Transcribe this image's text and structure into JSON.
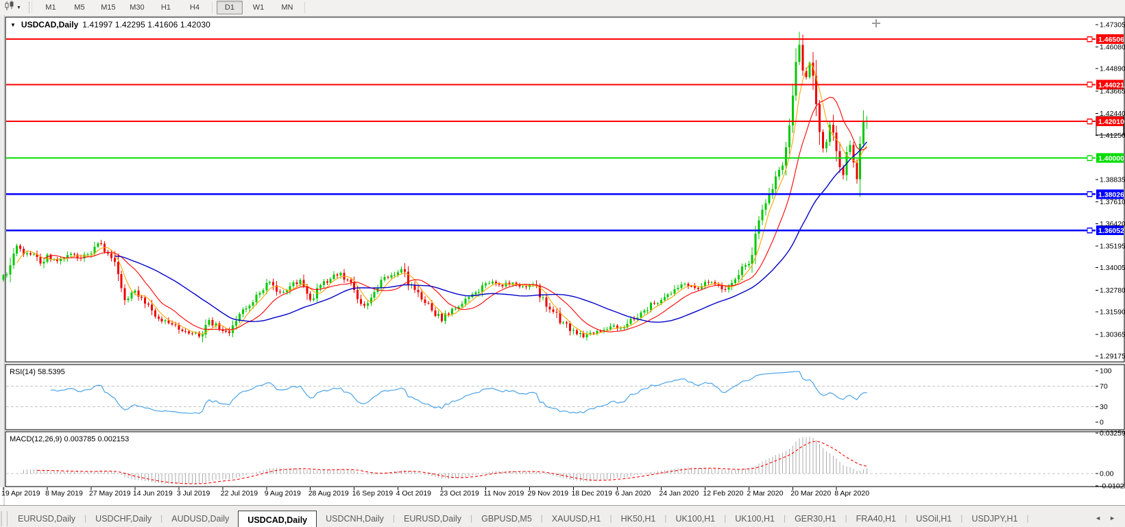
{
  "toolbar": {
    "chart_type_icon": "candlestick-chart-icon",
    "timeframes": [
      "M1",
      "M5",
      "M15",
      "M30",
      "H1",
      "H4",
      "D1",
      "W1",
      "MN"
    ],
    "active_timeframe": "D1"
  },
  "chart": {
    "title": {
      "caret": "▼",
      "symbol": "USDCAD,Daily",
      "ohlc": "1.41997 1.42295 1.41606 1.42030"
    }
  },
  "chart_data": {
    "type": "candlestick",
    "symbol": "USDCAD",
    "timeframe": "Daily",
    "last_bar": {
      "open": 1.41997,
      "high": 1.42295,
      "low": 1.41606,
      "close": 1.4203
    },
    "bar_count": 257,
    "y_axis": {
      "max": 1.4771,
      "min": 1.2886,
      "ticks": [
        "1.47305",
        "1.46080",
        "1.44890",
        "1.43665",
        "1.42440",
        "1.41250",
        "1.38835",
        "1.37610",
        "1.36420",
        "1.35195",
        "1.34005",
        "1.32780",
        "1.31590",
        "1.30365",
        "1.29175"
      ]
    },
    "x_axis": {
      "bars_per_label": 13,
      "labels": [
        "19 Apr 2019",
        "8 May 2019",
        "27 May 2019",
        "14 Jun 2019",
        "3 Jul 2019",
        "22 Jul 2019",
        "9 Aug 2019",
        "28 Aug 2019",
        "16 Sep 2019",
        "4 Oct 2019",
        "23 Oct 2019",
        "11 Nov 2019",
        "29 Nov 2019",
        "18 Dec 2019",
        "6 Jan 2020",
        "24 Jan 2020",
        "12 Feb 2020",
        "2 Mar 2020",
        "20 Mar 2020",
        "8 Apr 2020"
      ]
    },
    "close_waypoints": [
      [
        0,
        1.336
      ],
      [
        2,
        1.3405
      ],
      [
        4,
        1.352
      ],
      [
        6,
        1.348
      ],
      [
        9,
        1.347
      ],
      [
        11,
        1.342
      ],
      [
        13,
        1.3475
      ],
      [
        16,
        1.3435
      ],
      [
        19,
        1.3475
      ],
      [
        22,
        1.3455
      ],
      [
        25,
        1.347
      ],
      [
        27,
        1.352
      ],
      [
        29,
        1.354
      ],
      [
        31,
        1.348
      ],
      [
        33,
        1.344
      ],
      [
        36,
        1.3225
      ],
      [
        39,
        1.327
      ],
      [
        42,
        1.321
      ],
      [
        45,
        1.313
      ],
      [
        48,
        1.311
      ],
      [
        51,
        1.308
      ],
      [
        55,
        1.3045
      ],
      [
        58,
        1.303
      ],
      [
        61,
        1.311
      ],
      [
        64,
        1.307
      ],
      [
        67,
        1.3045
      ],
      [
        70,
        1.314
      ],
      [
        73,
        1.32
      ],
      [
        76,
        1.326
      ],
      [
        79,
        1.332
      ],
      [
        82,
        1.3265
      ],
      [
        85,
        1.3305
      ],
      [
        88,
        1.3335
      ],
      [
        91,
        1.323
      ],
      [
        94,
        1.331
      ],
      [
        97,
        1.334
      ],
      [
        100,
        1.3375
      ],
      [
        103,
        1.331
      ],
      [
        106,
        1.3195
      ],
      [
        109,
        1.323
      ],
      [
        112,
        1.333
      ],
      [
        115,
        1.3365
      ],
      [
        118,
        1.339
      ],
      [
        121,
        1.3305
      ],
      [
        124,
        1.323
      ],
      [
        127,
        1.317
      ],
      [
        130,
        1.3115
      ],
      [
        133,
        1.317
      ],
      [
        136,
        1.321
      ],
      [
        139,
        1.326
      ],
      [
        142,
        1.33
      ],
      [
        145,
        1.332
      ],
      [
        148,
        1.33
      ],
      [
        151,
        1.332
      ],
      [
        154,
        1.33
      ],
      [
        157,
        1.3305
      ],
      [
        160,
        1.323
      ],
      [
        163,
        1.316
      ],
      [
        166,
        1.31
      ],
      [
        169,
        1.3055
      ],
      [
        172,
        1.302
      ],
      [
        175,
        1.3045
      ],
      [
        178,
        1.3065
      ],
      [
        181,
        1.308
      ],
      [
        184,
        1.307
      ],
      [
        187,
        1.3125
      ],
      [
        190,
        1.3165
      ],
      [
        193,
        1.3205
      ],
      [
        196,
        1.3245
      ],
      [
        199,
        1.329
      ],
      [
        202,
        1.331
      ],
      [
        205,
        1.329
      ],
      [
        208,
        1.332
      ],
      [
        211,
        1.3305
      ],
      [
        214,
        1.3285
      ],
      [
        217,
        1.334
      ],
      [
        220,
        1.341
      ],
      [
        222,
        1.348
      ],
      [
        224,
        1.365
      ],
      [
        226,
        1.375
      ],
      [
        228,
        1.382
      ],
      [
        230,
        1.392
      ],
      [
        232,
        1.408
      ],
      [
        233,
        1.419
      ],
      [
        234,
        1.433
      ],
      [
        235,
        1.452
      ],
      [
        236,
        1.462
      ],
      [
        237,
        1.45
      ],
      [
        238,
        1.444
      ],
      [
        239,
        1.452
      ],
      [
        240,
        1.443
      ],
      [
        241,
        1.427
      ],
      [
        242,
        1.415
      ],
      [
        243,
        1.406
      ],
      [
        244,
        1.409
      ],
      [
        245,
        1.419
      ],
      [
        246,
        1.413
      ],
      [
        247,
        1.406
      ],
      [
        248,
        1.396
      ],
      [
        249,
        1.39
      ],
      [
        250,
        1.401
      ],
      [
        251,
        1.408
      ],
      [
        252,
        1.396
      ],
      [
        253,
        1.388
      ],
      [
        254,
        1.409
      ],
      [
        255,
        1.42
      ],
      [
        256,
        1.4203
      ]
    ],
    "wick_overrides": [
      [
        235,
        1.46
      ],
      [
        236,
        1.469
      ],
      [
        255,
        1.4262
      ]
    ],
    "horizontal_lines": [
      {
        "price": 1.46506,
        "label": "1.46506",
        "color": "#FF0000",
        "width": 2,
        "bid_box": false
      },
      {
        "price": 1.44021,
        "label": "1.44021",
        "color": "#FF0000",
        "width": 2,
        "bid_box": false
      },
      {
        "price": 1.4201,
        "label": "1.42010",
        "color": "#FF0000",
        "width": 2,
        "bid_box": true
      },
      {
        "price": 1.4,
        "label": "1.40000",
        "color": "#00DD00",
        "width": 2,
        "bid_box": false
      },
      {
        "price": 1.38026,
        "label": "1.38026",
        "color": "#0000FF",
        "width": 2.5,
        "bid_box": false
      },
      {
        "price": 1.36052,
        "label": "1.36052",
        "color": "#0000FF",
        "width": 2.5,
        "bid_box": false
      }
    ],
    "moving_averages": [
      {
        "period": 5,
        "color": "#FFA500"
      },
      {
        "period": 13,
        "color": "#FF0000"
      },
      {
        "period": 34,
        "color": "#0000C8"
      }
    ],
    "indicators": [
      {
        "name": "RSI",
        "params": "14",
        "label_text": "RSI(14) 58.5395",
        "value": 58.5395,
        "color": "#4AA3E8",
        "levels": [
          70,
          30
        ],
        "scale_ticks": [
          100,
          70,
          30,
          0
        ],
        "range": [
          0,
          100
        ]
      },
      {
        "name": "MACD",
        "params": "12,26,9",
        "label_text": "MACD(12,26,9) 0.003785 0.002153",
        "values": [
          0.003785,
          0.002153
        ],
        "hist_color": "#ABABAB",
        "signal_color": "#FF0000",
        "scale_ticks": [
          "0.032595",
          "0.00",
          "-0.010227"
        ],
        "range": [
          -0.010227,
          0.032595
        ]
      }
    ],
    "colors": {
      "bull": "#00C800",
      "bear": "#EE0000",
      "background": "#FFFFFF",
      "frame": "#000000",
      "level_dash": "#C4C4C4"
    }
  },
  "tabs": {
    "items": [
      "EURUSD,Daily",
      "USDCHF,Daily",
      "AUDUSD,Daily",
      "USDCAD,Daily",
      "USDCNH,Daily",
      "EURUSD,Daily",
      "GBPUSD,M5",
      "XAUUSD,H1",
      "HK50,H1",
      "UK100,H1",
      "UK100,H1",
      "GER30,H1",
      "FRA40,H1",
      "USOil,H1",
      "USDJPY,H1"
    ],
    "active_index": 3,
    "scroll_left_icon": "◄",
    "scroll_right_icon": "►"
  }
}
